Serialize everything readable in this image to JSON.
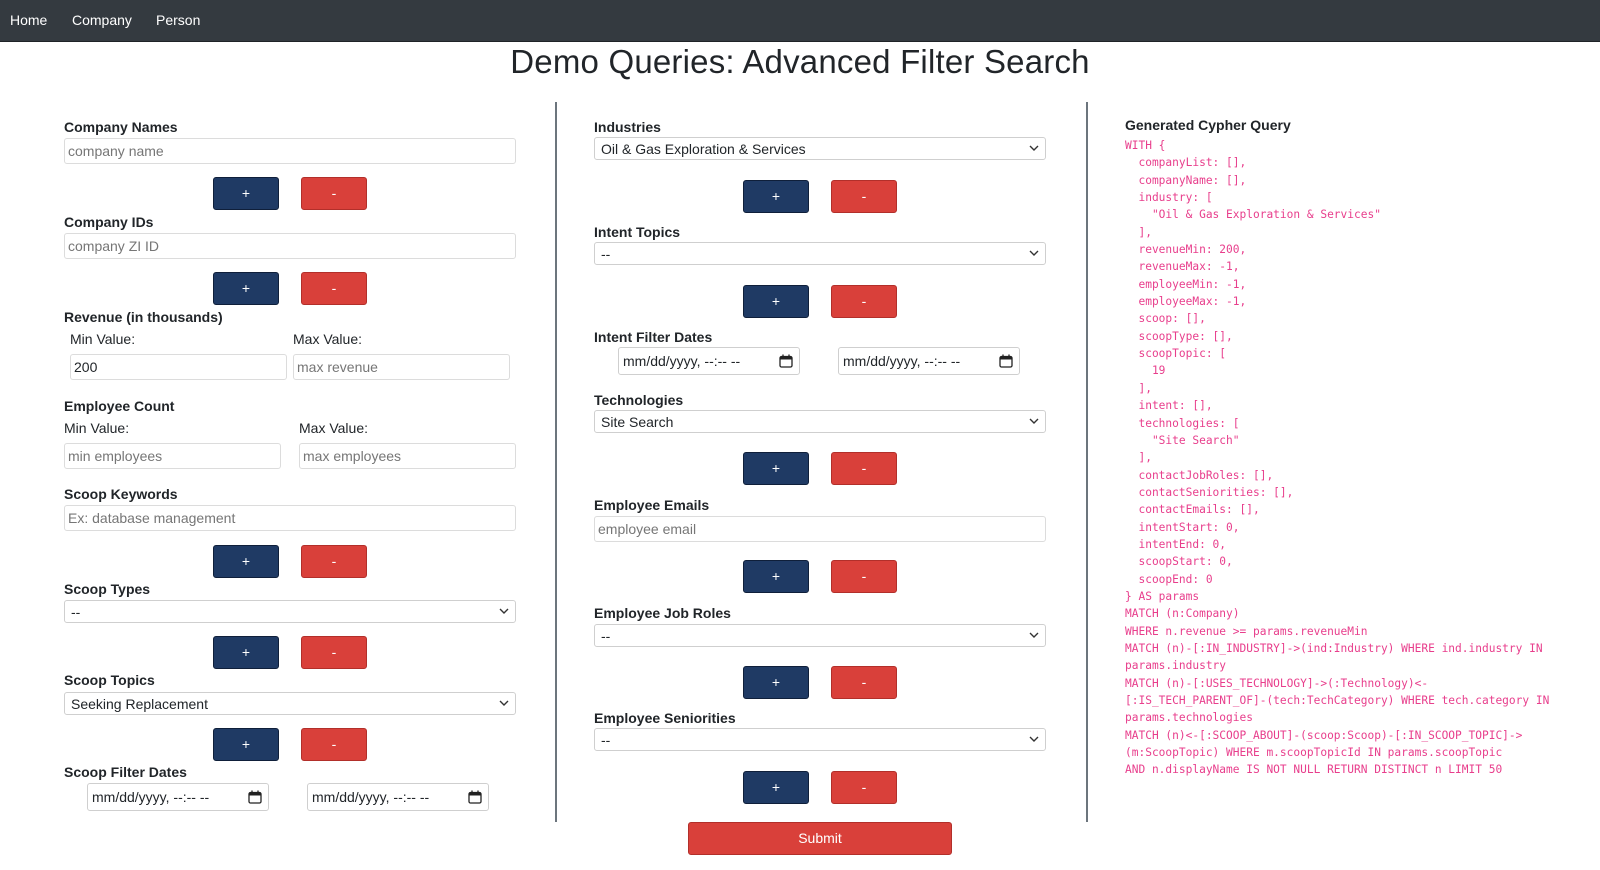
{
  "nav": {
    "items": [
      "Home",
      "Company",
      "Person"
    ]
  },
  "page_title": "Demo Queries: Advanced Filter Search",
  "left": {
    "company_names": {
      "label": "Company Names",
      "placeholder": "company name"
    },
    "company_ids": {
      "label": "Company IDs",
      "placeholder": "company ZI ID"
    },
    "revenue": {
      "label": "Revenue (in thousands)",
      "min_label": "Min Value:",
      "max_label": "Max Value:",
      "min_value": "200",
      "max_placeholder": "max revenue"
    },
    "employee_count": {
      "label": "Employee Count",
      "min_label": "Min Value:",
      "max_label": "Max Value:",
      "min_placeholder": "min employees",
      "max_placeholder": "max employees"
    },
    "scoop_keywords": {
      "label": "Scoop Keywords",
      "placeholder": "Ex: database management"
    },
    "scoop_types": {
      "label": "Scoop Types",
      "selected": "--"
    },
    "scoop_topics": {
      "label": "Scoop Topics",
      "selected": "Seeking Replacement"
    },
    "scoop_filter_dates": {
      "label": "Scoop Filter Dates",
      "start": "mm/dd/yyyy, --:-- --",
      "end": "mm/dd/yyyy, --:-- --"
    }
  },
  "middle": {
    "industries": {
      "label": "Industries",
      "selected": "Oil & Gas Exploration & Services"
    },
    "intent_topics": {
      "label": "Intent Topics",
      "selected": "--"
    },
    "intent_filter_dates": {
      "label": "Intent Filter Dates",
      "start": "mm/dd/yyyy, --:-- --",
      "end": "mm/dd/yyyy, --:-- --"
    },
    "technologies": {
      "label": "Technologies",
      "selected": "Site Search"
    },
    "employee_emails": {
      "label": "Employee Emails",
      "placeholder": "employee email"
    },
    "employee_job_roles": {
      "label": "Employee Job Roles",
      "selected": "--"
    },
    "employee_seniorities": {
      "label": "Employee Seniorities",
      "selected": "--"
    }
  },
  "buttons": {
    "add": "+",
    "remove": "-",
    "submit": "Submit"
  },
  "query": {
    "title": "Generated Cypher Query",
    "text": "WITH {\n  companyList: [],\n  companyName: [],\n  industry: [\n    \"Oil & Gas Exploration & Services\"\n  ],\n  revenueMin: 200,\n  revenueMax: -1,\n  employeeMin: -1,\n  employeeMax: -1,\n  scoop: [],\n  scoopType: [],\n  scoopTopic: [\n    19\n  ],\n  intent: [],\n  technologies: [\n    \"Site Search\"\n  ],\n  contactJobRoles: [],\n  contactSeniorities: [],\n  contactEmails: [],\n  intentStart: 0,\n  intentEnd: 0,\n  scoopStart: 0,\n  scoopEnd: 0\n} AS params\nMATCH (n:Company)\nWHERE n.revenue >= params.revenueMin\nMATCH (n)-[:IN_INDUSTRY]->(ind:Industry) WHERE ind.industry IN\nparams.industry\nMATCH (n)-[:USES_TECHNOLOGY]->(:Technology)<-\n[:IS_TECH_PARENT_OF]-(tech:TechCategory) WHERE tech.category IN\nparams.technologies\nMATCH (n)<-[:SCOOP_ABOUT]-(scoop:Scoop)-[:IN_SCOOP_TOPIC]->\n(m:ScoopTopic) WHERE m.scoopTopicId IN params.scoopTopic\nAND n.displayName IS NOT NULL RETURN DISTINCT n LIMIT 50"
  },
  "colors": {
    "navbar": "#343a40",
    "add_button": "#1f3a64",
    "remove_button": "#d9403a",
    "query_text": "#e83e8c"
  }
}
